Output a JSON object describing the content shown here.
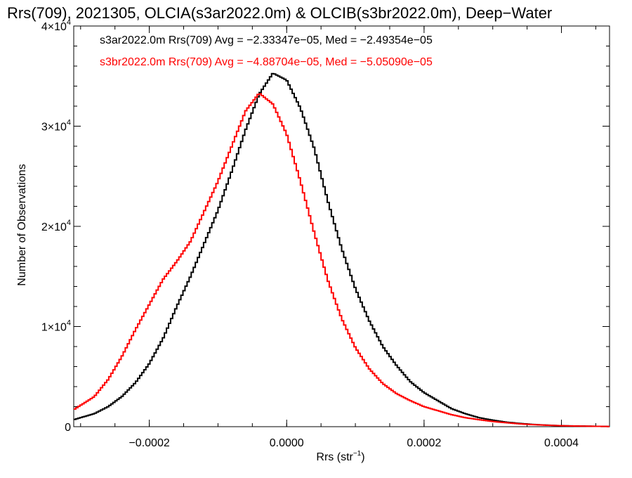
{
  "chart_data": {
    "type": "line",
    "title": "Rrs(709), 2021305, OLCIA(s3ar2022.0m) & OLCIB(s3br2022.0m), Deep−Water",
    "xlabel": "Rrs (str",
    "xlabel_sup": "−1",
    "xlabel_end": ")",
    "ylabel": "Number of Observations",
    "xlim": [
      -0.00031,
      0.00047
    ],
    "ylim": [
      0,
      40000
    ],
    "x_ticks": [
      {
        "value": -0.0002,
        "label": "−0.0002"
      },
      {
        "value": 0.0,
        "label": "0.0000"
      },
      {
        "value": 0.0002,
        "label": "0.0002"
      },
      {
        "value": 0.0004,
        "label": "0.0004"
      }
    ],
    "y_ticks": [
      {
        "value": 0,
        "label": "0",
        "sup": ""
      },
      {
        "value": 10000,
        "label": "1×10",
        "sup": "4"
      },
      {
        "value": 20000,
        "label": "2×10",
        "sup": "4"
      },
      {
        "value": 30000,
        "label": "3×10",
        "sup": "4"
      },
      {
        "value": 40000,
        "label": "4×10",
        "sup": "4"
      }
    ],
    "colors": {
      "s3ar": "#000000",
      "s3br": "#ff0000"
    },
    "legend_position": "top-left",
    "series": [
      {
        "name": "s3ar2022.0m",
        "color": "#000000",
        "legend": "s3ar2022.0m Rrs(709) Avg = −2.33347e−05, Med = −2.49354e−05",
        "points": [
          [
            -0.00031,
            700
          ],
          [
            -0.00028,
            1300
          ],
          [
            -0.00026,
            2000
          ],
          [
            -0.00024,
            3000
          ],
          [
            -0.00022,
            4400
          ],
          [
            -0.0002,
            6300
          ],
          [
            -0.00018,
            8800
          ],
          [
            -0.00016,
            12000
          ],
          [
            -0.00014,
            15000
          ],
          [
            -0.00012,
            18300
          ],
          [
            -0.0001,
            21600
          ],
          [
            -8e-05,
            25500
          ],
          [
            -6e-05,
            29600
          ],
          [
            -4e-05,
            33200
          ],
          [
            -2e-05,
            35300
          ],
          [
            0.0,
            34600
          ],
          [
            2e-05,
            31800
          ],
          [
            4e-05,
            27800
          ],
          [
            6e-05,
            22500
          ],
          [
            8e-05,
            17800
          ],
          [
            0.0001,
            13800
          ],
          [
            0.00012,
            10600
          ],
          [
            0.00014,
            8000
          ],
          [
            0.00016,
            6100
          ],
          [
            0.00018,
            4500
          ],
          [
            0.0002,
            3400
          ],
          [
            0.00022,
            2600
          ],
          [
            0.00024,
            1800
          ],
          [
            0.00026,
            1300
          ],
          [
            0.00028,
            900
          ],
          [
            0.0003,
            650
          ],
          [
            0.00032,
            450
          ],
          [
            0.00034,
            320
          ],
          [
            0.00036,
            220
          ],
          [
            0.00038,
            150
          ],
          [
            0.0004,
            100
          ],
          [
            0.00042,
            70
          ],
          [
            0.00044,
            50
          ],
          [
            0.00046,
            30
          ],
          [
            0.00047,
            20
          ]
        ]
      },
      {
        "name": "s3br2022.0m",
        "color": "#ff0000",
        "legend": "s3br2022.0m Rrs(709) Avg = −4.88704e−05, Med = −5.05090e−05",
        "points": [
          [
            -0.00031,
            1700
          ],
          [
            -0.00028,
            3000
          ],
          [
            -0.00026,
            4700
          ],
          [
            -0.00024,
            7000
          ],
          [
            -0.00022,
            9700
          ],
          [
            -0.0002,
            12200
          ],
          [
            -0.00018,
            14700
          ],
          [
            -0.00016,
            16500
          ],
          [
            -0.00014,
            18500
          ],
          [
            -0.00012,
            21500
          ],
          [
            -0.0001,
            24500
          ],
          [
            -8e-05,
            28000
          ],
          [
            -6e-05,
            31500
          ],
          [
            -4e-05,
            33300
          ],
          [
            -2e-05,
            32200
          ],
          [
            0.0,
            29200
          ],
          [
            2e-05,
            24500
          ],
          [
            4e-05,
            19400
          ],
          [
            6e-05,
            14600
          ],
          [
            8e-05,
            10800
          ],
          [
            0.0001,
            7900
          ],
          [
            0.00012,
            5800
          ],
          [
            0.00014,
            4300
          ],
          [
            0.00016,
            3300
          ],
          [
            0.00018,
            2600
          ],
          [
            0.0002,
            2000
          ],
          [
            0.00022,
            1600
          ],
          [
            0.00024,
            1200
          ],
          [
            0.00026,
            900
          ],
          [
            0.00028,
            700
          ],
          [
            0.0003,
            520
          ],
          [
            0.00032,
            390
          ],
          [
            0.00034,
            280
          ],
          [
            0.00036,
            200
          ],
          [
            0.00038,
            140
          ],
          [
            0.0004,
            95
          ],
          [
            0.00042,
            65
          ],
          [
            0.00044,
            45
          ],
          [
            0.00046,
            30
          ],
          [
            0.00047,
            20
          ]
        ]
      }
    ]
  }
}
